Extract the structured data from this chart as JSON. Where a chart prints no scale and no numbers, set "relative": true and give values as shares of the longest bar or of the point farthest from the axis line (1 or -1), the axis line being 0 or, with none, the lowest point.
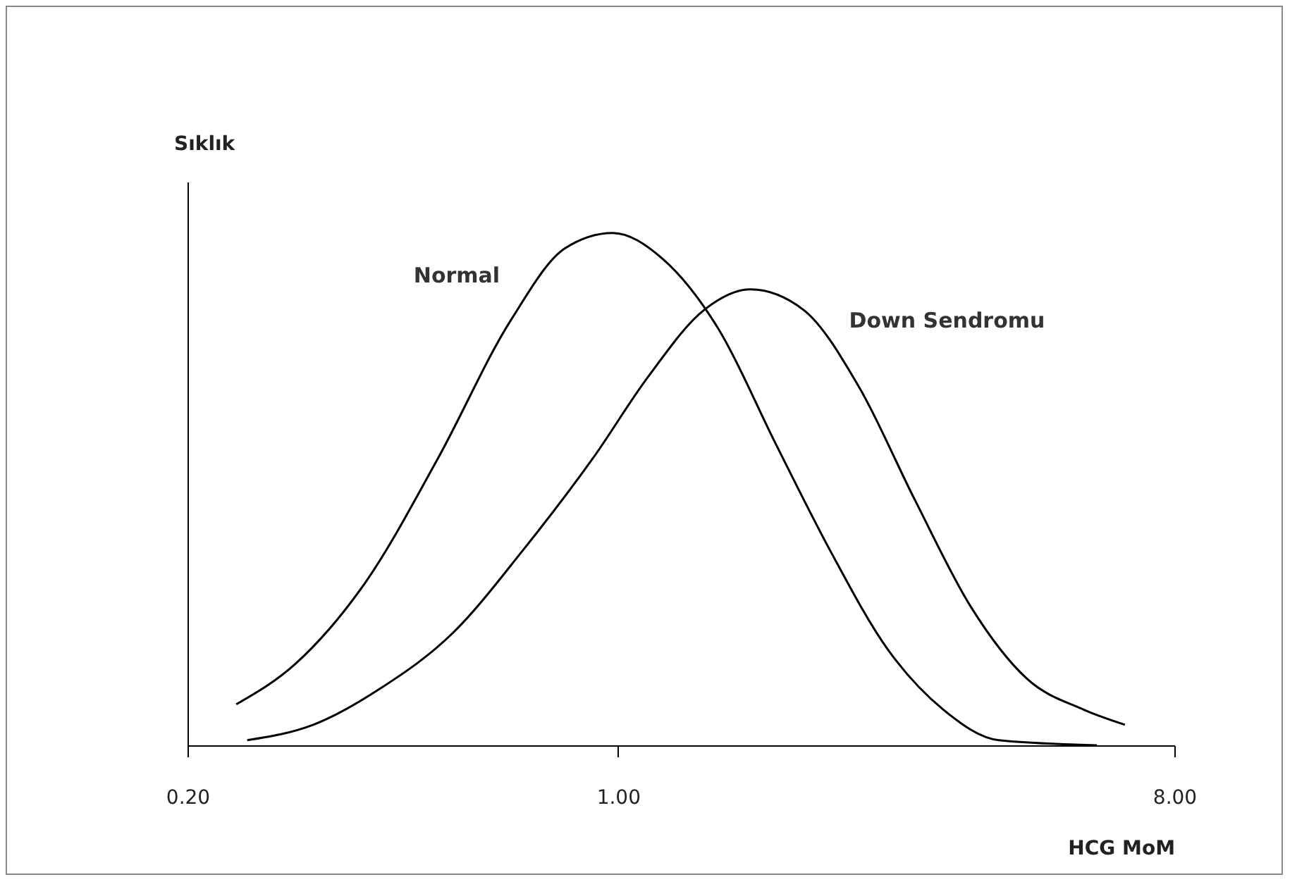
{
  "chart_data": {
    "type": "line",
    "relative": true,
    "log": "x",
    "xlabel": "HCG MoM",
    "ylabel": "Sıklık",
    "xlim": [
      0.2,
      8
    ],
    "xticks": [
      {
        "value": 0.2,
        "label": "0.20"
      },
      {
        "value": 1,
        "label": "1.00"
      },
      {
        "value": 8,
        "label": "8.00"
      }
    ],
    "legend": false,
    "grid": false,
    "marker": "none",
    "line_style": "solid",
    "series": [
      {
        "name": "Normal",
        "color": "#000000",
        "x": [
          0.24,
          0.3,
          0.39,
          0.51,
          0.67,
          0.82,
          0.98,
          1.18,
          1.46,
          1.8,
          2.21,
          2.73,
          3.37,
          4.15,
          5.99
        ],
        "values": [
          0.08,
          0.16,
          0.32,
          0.56,
          0.83,
          0.97,
          1,
          0.95,
          0.81,
          0.59,
          0.38,
          0.19,
          0.07,
          0.01,
          0
        ]
      },
      {
        "name": "Down Sendromu",
        "color": "#000000",
        "x": [
          0.25,
          0.32,
          0.41,
          0.54,
          0.7,
          0.91,
          1.12,
          1.38,
          1.64,
          2,
          2.46,
          3.03,
          3.74,
          4.61,
          5.69,
          6.65
        ],
        "values": [
          0.01,
          0.04,
          0.11,
          0.22,
          0.38,
          0.56,
          0.72,
          0.85,
          0.89,
          0.85,
          0.7,
          0.48,
          0.27,
          0.13,
          0.07,
          0.04
        ]
      }
    ]
  }
}
